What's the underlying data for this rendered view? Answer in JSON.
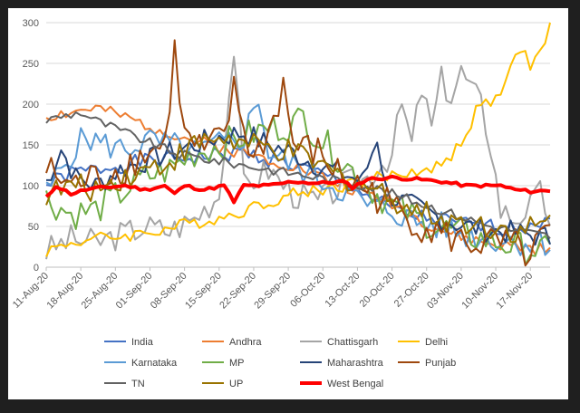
{
  "chart_data": {
    "type": "line",
    "title": "",
    "xlabel": "",
    "ylabel": "",
    "ylim": [
      0,
      300
    ],
    "yticks": [
      0,
      50,
      100,
      150,
      200,
      250,
      300
    ],
    "x_tick_labels": [
      "11-Aug-20",
      "18-Aug-20",
      "25-Aug-20",
      "01-Sep-20",
      "08-Sep-20",
      "15-Sep-20",
      "22-Sep-20",
      "29-Sep-20",
      "06-Oct-20",
      "13-Oct-20",
      "20-Oct-20",
      "27-Oct-20",
      "03-Nov-20",
      "10-Nov-20",
      "17-Nov-20"
    ],
    "x_range_days": [
      0,
      102
    ],
    "grid": "horizontal",
    "legend_position": "bottom",
    "series": [
      {
        "name": "India",
        "color": "#4472C4",
        "width": 2,
        "keyframes": [
          [
            0,
            100
          ],
          [
            5,
            115
          ],
          [
            10,
            120
          ],
          [
            20,
            130
          ],
          [
            30,
            135
          ],
          [
            40,
            140
          ],
          [
            50,
            125
          ],
          [
            57,
            110
          ],
          [
            62,
            100
          ],
          [
            67,
            80
          ],
          [
            72,
            65
          ],
          [
            77,
            60
          ],
          [
            82,
            55
          ],
          [
            87,
            50
          ],
          [
            92,
            48
          ],
          [
            97,
            50
          ],
          [
            102,
            65
          ]
        ],
        "amp": 10,
        "seed": 1
      },
      {
        "name": "Andhra",
        "color": "#ED7D31",
        "width": 2,
        "keyframes": [
          [
            0,
            185
          ],
          [
            5,
            190
          ],
          [
            10,
            195
          ],
          [
            15,
            185
          ],
          [
            20,
            175
          ],
          [
            25,
            165
          ],
          [
            30,
            155
          ],
          [
            40,
            140
          ],
          [
            50,
            125
          ],
          [
            60,
            100
          ],
          [
            70,
            80
          ],
          [
            75,
            60
          ],
          [
            80,
            45
          ],
          [
            85,
            35
          ],
          [
            90,
            28
          ],
          [
            95,
            25
          ],
          [
            102,
            20
          ]
        ],
        "amp": 8,
        "seed": 2
      },
      {
        "name": "Chattisgarh",
        "color": "#A5A5A5",
        "width": 2,
        "keyframes": [
          [
            0,
            20
          ],
          [
            5,
            35
          ],
          [
            10,
            30
          ],
          [
            15,
            40
          ],
          [
            20,
            50
          ],
          [
            25,
            45
          ],
          [
            30,
            60
          ],
          [
            35,
            90
          ],
          [
            38,
            270
          ],
          [
            40,
            100
          ],
          [
            45,
            120
          ],
          [
            50,
            90
          ],
          [
            55,
            80
          ],
          [
            60,
            100
          ],
          [
            65,
            110
          ],
          [
            70,
            140
          ],
          [
            72,
            200
          ],
          [
            74,
            150
          ],
          [
            76,
            220
          ],
          [
            78,
            170
          ],
          [
            80,
            230
          ],
          [
            82,
            210
          ],
          [
            84,
            240
          ],
          [
            86,
            220
          ],
          [
            88,
            200
          ],
          [
            90,
            150
          ],
          [
            92,
            70
          ],
          [
            95,
            60
          ],
          [
            98,
            75
          ],
          [
            100,
            90
          ],
          [
            102,
            60
          ]
        ],
        "amp": 18,
        "seed": 3
      },
      {
        "name": "Delhi",
        "color": "#FFC000",
        "width": 2,
        "keyframes": [
          [
            0,
            20
          ],
          [
            5,
            30
          ],
          [
            10,
            35
          ],
          [
            15,
            38
          ],
          [
            20,
            42
          ],
          [
            25,
            48
          ],
          [
            30,
            55
          ],
          [
            35,
            60
          ],
          [
            40,
            70
          ],
          [
            45,
            80
          ],
          [
            50,
            90
          ],
          [
            55,
            95
          ],
          [
            60,
            100
          ],
          [
            65,
            108
          ],
          [
            70,
            112
          ],
          [
            75,
            118
          ],
          [
            80,
            125
          ],
          [
            83,
            145
          ],
          [
            86,
            175
          ],
          [
            88,
            205
          ],
          [
            90,
            195
          ],
          [
            92,
            215
          ],
          [
            94,
            240
          ],
          [
            96,
            270
          ],
          [
            98,
            250
          ],
          [
            100,
            260
          ],
          [
            102,
            300
          ]
        ],
        "amp": 8,
        "seed": 4
      },
      {
        "name": "Karnataka",
        "color": "#5B9BD5",
        "width": 2,
        "keyframes": [
          [
            0,
            90
          ],
          [
            5,
            140
          ],
          [
            8,
            160
          ],
          [
            12,
            150
          ],
          [
            16,
            145
          ],
          [
            20,
            155
          ],
          [
            25,
            150
          ],
          [
            30,
            140
          ],
          [
            35,
            150
          ],
          [
            40,
            160
          ],
          [
            43,
            210
          ],
          [
            45,
            140
          ],
          [
            50,
            125
          ],
          [
            55,
            110
          ],
          [
            60,
            95
          ],
          [
            65,
            75
          ],
          [
            70,
            70
          ],
          [
            75,
            55
          ],
          [
            80,
            50
          ],
          [
            85,
            40
          ],
          [
            90,
            35
          ],
          [
            95,
            32
          ],
          [
            102,
            30
          ]
        ],
        "amp": 18,
        "seed": 5
      },
      {
        "name": "MP",
        "color": "#70AD47",
        "width": 2,
        "keyframes": [
          [
            0,
            85
          ],
          [
            5,
            65
          ],
          [
            10,
            70
          ],
          [
            15,
            90
          ],
          [
            20,
            110
          ],
          [
            25,
            120
          ],
          [
            30,
            140
          ],
          [
            35,
            150
          ],
          [
            40,
            160
          ],
          [
            45,
            170
          ],
          [
            50,
            175
          ],
          [
            52,
            185
          ],
          [
            55,
            160
          ],
          [
            60,
            130
          ],
          [
            65,
            100
          ],
          [
            70,
            75
          ],
          [
            75,
            60
          ],
          [
            80,
            48
          ],
          [
            85,
            40
          ],
          [
            90,
            32
          ],
          [
            95,
            25
          ],
          [
            100,
            20
          ],
          [
            102,
            18
          ]
        ],
        "amp": 20,
        "seed": 6
      },
      {
        "name": "Maharashtra",
        "color": "#264478",
        "width": 2,
        "keyframes": [
          [
            0,
            105
          ],
          [
            3,
            145
          ],
          [
            6,
            110
          ],
          [
            10,
            100
          ],
          [
            15,
            120
          ],
          [
            20,
            130
          ],
          [
            25,
            140
          ],
          [
            30,
            150
          ],
          [
            35,
            160
          ],
          [
            40,
            165
          ],
          [
            45,
            150
          ],
          [
            50,
            140
          ],
          [
            55,
            125
          ],
          [
            60,
            115
          ],
          [
            64,
            105
          ],
          [
            67,
            160
          ],
          [
            69,
            90
          ],
          [
            72,
            80
          ],
          [
            76,
            70
          ],
          [
            80,
            60
          ],
          [
            85,
            50
          ],
          [
            90,
            45
          ],
          [
            95,
            42
          ],
          [
            100,
            38
          ],
          [
            102,
            35
          ]
        ],
        "amp": 15,
        "seed": 7
      },
      {
        "name": "Punjab",
        "color": "#9E480E",
        "width": 2,
        "keyframes": [
          [
            0,
            120
          ],
          [
            5,
            100
          ],
          [
            10,
            110
          ],
          [
            15,
            120
          ],
          [
            20,
            140
          ],
          [
            24,
            150
          ],
          [
            26,
            265
          ],
          [
            28,
            160
          ],
          [
            32,
            140
          ],
          [
            36,
            160
          ],
          [
            38,
            215
          ],
          [
            42,
            130
          ],
          [
            46,
            180
          ],
          [
            48,
            225
          ],
          [
            50,
            150
          ],
          [
            55,
            140
          ],
          [
            60,
            110
          ],
          [
            65,
            95
          ],
          [
            70,
            75
          ],
          [
            75,
            55
          ],
          [
            80,
            40
          ],
          [
            85,
            30
          ],
          [
            90,
            28
          ],
          [
            95,
            25
          ],
          [
            98,
            5
          ],
          [
            100,
            35
          ],
          [
            102,
            40
          ]
        ],
        "amp": 22,
        "seed": 8
      },
      {
        "name": "TN",
        "color": "#636363",
        "width": 2,
        "keyframes": [
          [
            0,
            180
          ],
          [
            3,
            185
          ],
          [
            7,
            190
          ],
          [
            10,
            180
          ],
          [
            14,
            170
          ],
          [
            18,
            160
          ],
          [
            22,
            150
          ],
          [
            26,
            140
          ],
          [
            30,
            135
          ],
          [
            35,
            130
          ],
          [
            40,
            125
          ],
          [
            45,
            120
          ],
          [
            50,
            115
          ],
          [
            55,
            110
          ],
          [
            60,
            105
          ],
          [
            65,
            100
          ],
          [
            70,
            90
          ],
          [
            75,
            80
          ],
          [
            80,
            70
          ],
          [
            85,
            60
          ],
          [
            90,
            50
          ],
          [
            95,
            45
          ],
          [
            100,
            40
          ],
          [
            102,
            38
          ]
        ],
        "amp": 6,
        "seed": 9
      },
      {
        "name": "UP",
        "color": "#997300",
        "width": 2,
        "keyframes": [
          [
            0,
            90
          ],
          [
            5,
            100
          ],
          [
            10,
            95
          ],
          [
            15,
            110
          ],
          [
            20,
            120
          ],
          [
            25,
            130
          ],
          [
            30,
            150
          ],
          [
            35,
            160
          ],
          [
            40,
            150
          ],
          [
            45,
            145
          ],
          [
            50,
            140
          ],
          [
            55,
            125
          ],
          [
            60,
            110
          ],
          [
            65,
            100
          ],
          [
            70,
            85
          ],
          [
            75,
            70
          ],
          [
            80,
            60
          ],
          [
            85,
            55
          ],
          [
            90,
            50
          ],
          [
            95,
            45
          ],
          [
            100,
            50
          ],
          [
            102,
            55
          ]
        ],
        "amp": 16,
        "seed": 10
      },
      {
        "name": "West Bengal",
        "color": "#FF0000",
        "width": 4,
        "keyframes": [
          [
            0,
            85
          ],
          [
            2,
            100
          ],
          [
            5,
            90
          ],
          [
            8,
            95
          ],
          [
            12,
            98
          ],
          [
            16,
            100
          ],
          [
            20,
            95
          ],
          [
            24,
            100
          ],
          [
            26,
            90
          ],
          [
            28,
            100
          ],
          [
            32,
            95
          ],
          [
            36,
            100
          ],
          [
            38,
            80
          ],
          [
            40,
            100
          ],
          [
            45,
            100
          ],
          [
            50,
            105
          ],
          [
            55,
            103
          ],
          [
            60,
            105
          ],
          [
            62,
            98
          ],
          [
            65,
            108
          ],
          [
            70,
            110
          ],
          [
            75,
            108
          ],
          [
            80,
            105
          ],
          [
            85,
            100
          ],
          [
            88,
            100
          ],
          [
            92,
            100
          ],
          [
            95,
            95
          ],
          [
            98,
            93
          ],
          [
            102,
            94
          ]
        ],
        "amp": 2,
        "seed": 11
      }
    ]
  }
}
